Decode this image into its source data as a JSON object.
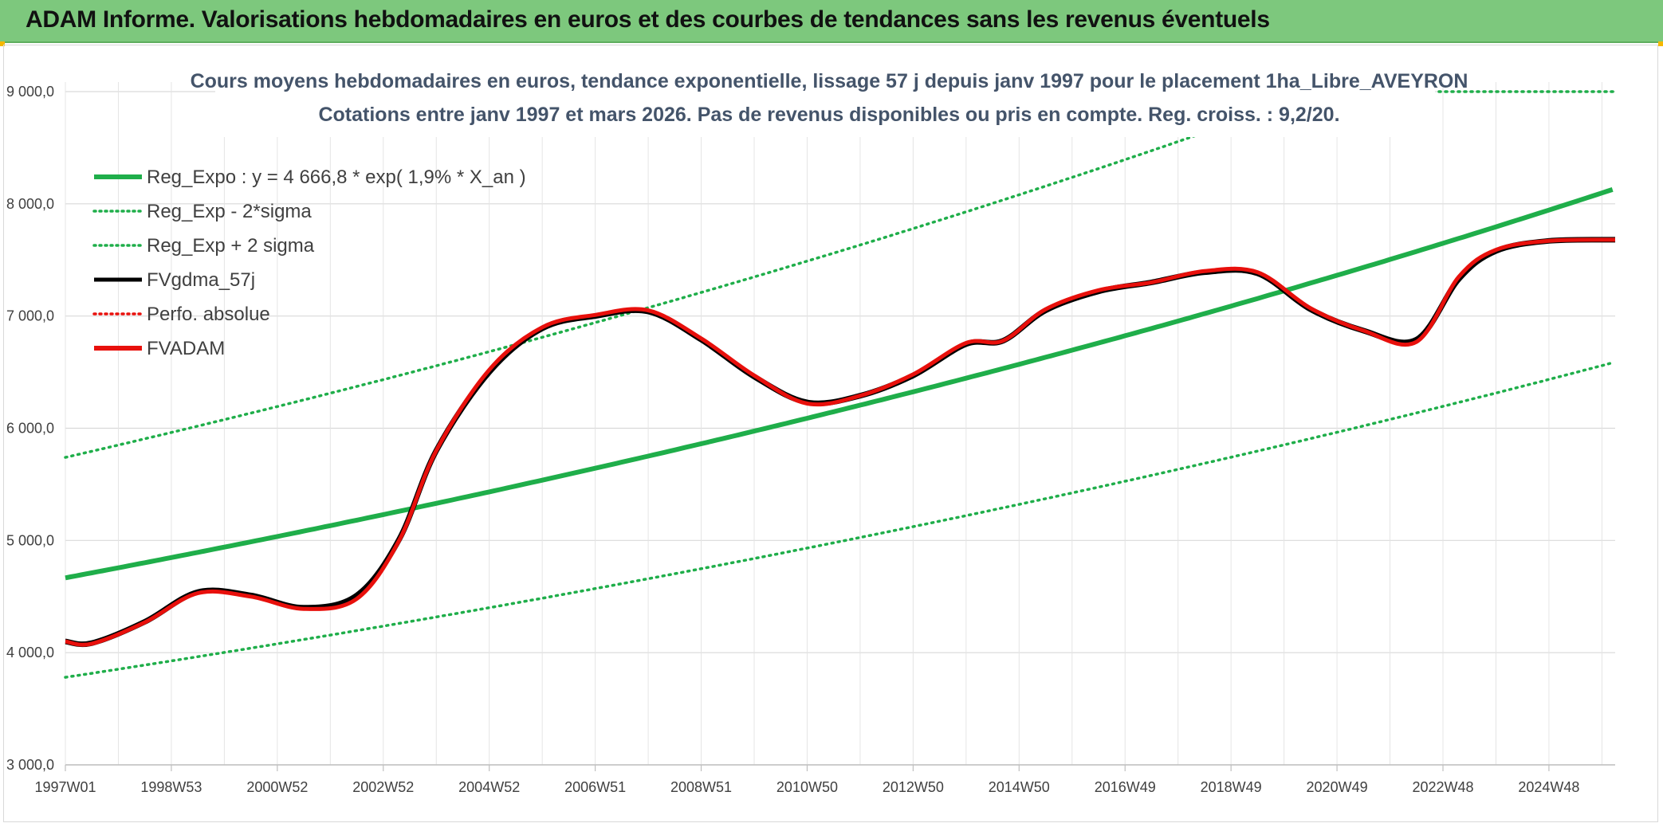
{
  "header": {
    "title": "ADAM Informe. Valorisations hebdomadaires en euros et des courbes de tendances sans les revenus éventuels"
  },
  "colors": {
    "header_bg": "#7dc87d",
    "reg_expo": "#1fae4a",
    "fvadam": "#e8100c",
    "fvgdma": "#000000",
    "perfo": "#e8100c",
    "accent_corner": "#f5b800"
  },
  "chart_data": {
    "type": "line",
    "title_line1": "Cours moyens hebdomadaires en euros, tendance exponentielle, lissage 57 j depuis janv 1997 pour le placement 1ha_Libre_AVEYRON",
    "title_line2": "Cotations entre janv 1997 et mars 2026. Pas de revenus disponibles ou pris en compte. Reg. croiss. : 9,2/20.",
    "ylim": [
      3000,
      9000
    ],
    "yticks": [
      3000,
      4000,
      5000,
      6000,
      7000,
      8000,
      9000
    ],
    "ytick_labels": [
      "3 000,0",
      "4 000,0",
      "5 000,0",
      "6 000,0",
      "7 000,0",
      "8 000,0",
      "9 000,0"
    ],
    "xlim": [
      1997.0,
      2026.25
    ],
    "xtick_labels": [
      "1997W01",
      "1998W53",
      "2000W52",
      "2002W52",
      "2004W52",
      "2006W51",
      "2008W51",
      "2010W50",
      "2012W50",
      "2014W50",
      "2016W49",
      "2018W49",
      "2020W49",
      "2022W48",
      "2024W48"
    ],
    "xtick_years": [
      1997.0,
      1999.0,
      2001.0,
      2003.0,
      2005.0,
      2007.0,
      2009.0,
      2011.0,
      2013.0,
      2015.0,
      2017.0,
      2019.0,
      2021.0,
      2023.0,
      2025.0
    ],
    "legend": [
      {
        "name": "Reg_Expo : y = 4 666,8 * exp( 1,9% *  X_an )",
        "style": "solid-thick",
        "color": "#1fae4a"
      },
      {
        "name": "Reg_Exp - 2*sigma",
        "style": "dotted",
        "color": "#1fae4a"
      },
      {
        "name": "Reg_Exp + 2 sigma",
        "style": "dotted",
        "color": "#1fae4a"
      },
      {
        "name": "FVgdma_57j",
        "style": "solid",
        "color": "#000000"
      },
      {
        "name": "Perfo. absolue",
        "style": "dotted",
        "color": "#e8100c"
      },
      {
        "name": "FVADAM",
        "style": "solid-thick",
        "color": "#e8100c"
      }
    ],
    "regression": {
      "a": 4666.8,
      "rate": 0.019,
      "upper_factor": 1.23,
      "lower_factor": 0.81
    },
    "series": [
      {
        "name": "FVADAM",
        "x": [
          1997.0,
          1997.5,
          1998.5,
          1999.5,
          2000.5,
          2001.5,
          2002.5,
          2003.3,
          2004.0,
          2005.0,
          2006.0,
          2007.0,
          2008.0,
          2009.0,
          2010.0,
          2011.0,
          2012.0,
          2013.0,
          2014.0,
          2014.7,
          2015.5,
          2016.5,
          2017.5,
          2018.5,
          2019.5,
          2020.5,
          2021.5,
          2022.5,
          2023.3,
          2024.0,
          2025.0,
          2026.25
        ],
        "values": [
          4100,
          4080,
          4270,
          4530,
          4500,
          4390,
          4480,
          5000,
          5800,
          6520,
          6900,
          7010,
          7050,
          6800,
          6470,
          6220,
          6290,
          6480,
          6760,
          6780,
          7060,
          7230,
          7300,
          7400,
          7390,
          7070,
          6870,
          6770,
          7350,
          7590,
          7670,
          7680
        ]
      },
      {
        "name": "FVgdma_57j",
        "x": [
          1997.0,
          1997.5,
          1998.5,
          1999.5,
          2000.5,
          2001.5,
          2002.5,
          2003.3,
          2004.0,
          2005.0,
          2006.0,
          2007.0,
          2008.0,
          2009.0,
          2010.0,
          2011.0,
          2012.0,
          2013.0,
          2014.0,
          2014.7,
          2015.5,
          2016.5,
          2017.5,
          2018.5,
          2019.5,
          2020.5,
          2021.5,
          2022.5,
          2023.3,
          2024.0,
          2025.0,
          2026.25
        ],
        "values": [
          4100,
          4085,
          4275,
          4540,
          4510,
          4400,
          4510,
          5010,
          5800,
          6500,
          6890,
          7000,
          7040,
          6790,
          6460,
          6230,
          6290,
          6470,
          6750,
          6780,
          7050,
          7220,
          7300,
          7390,
          7380,
          7060,
          6870,
          6790,
          7330,
          7580,
          7670,
          7680
        ]
      }
    ]
  }
}
